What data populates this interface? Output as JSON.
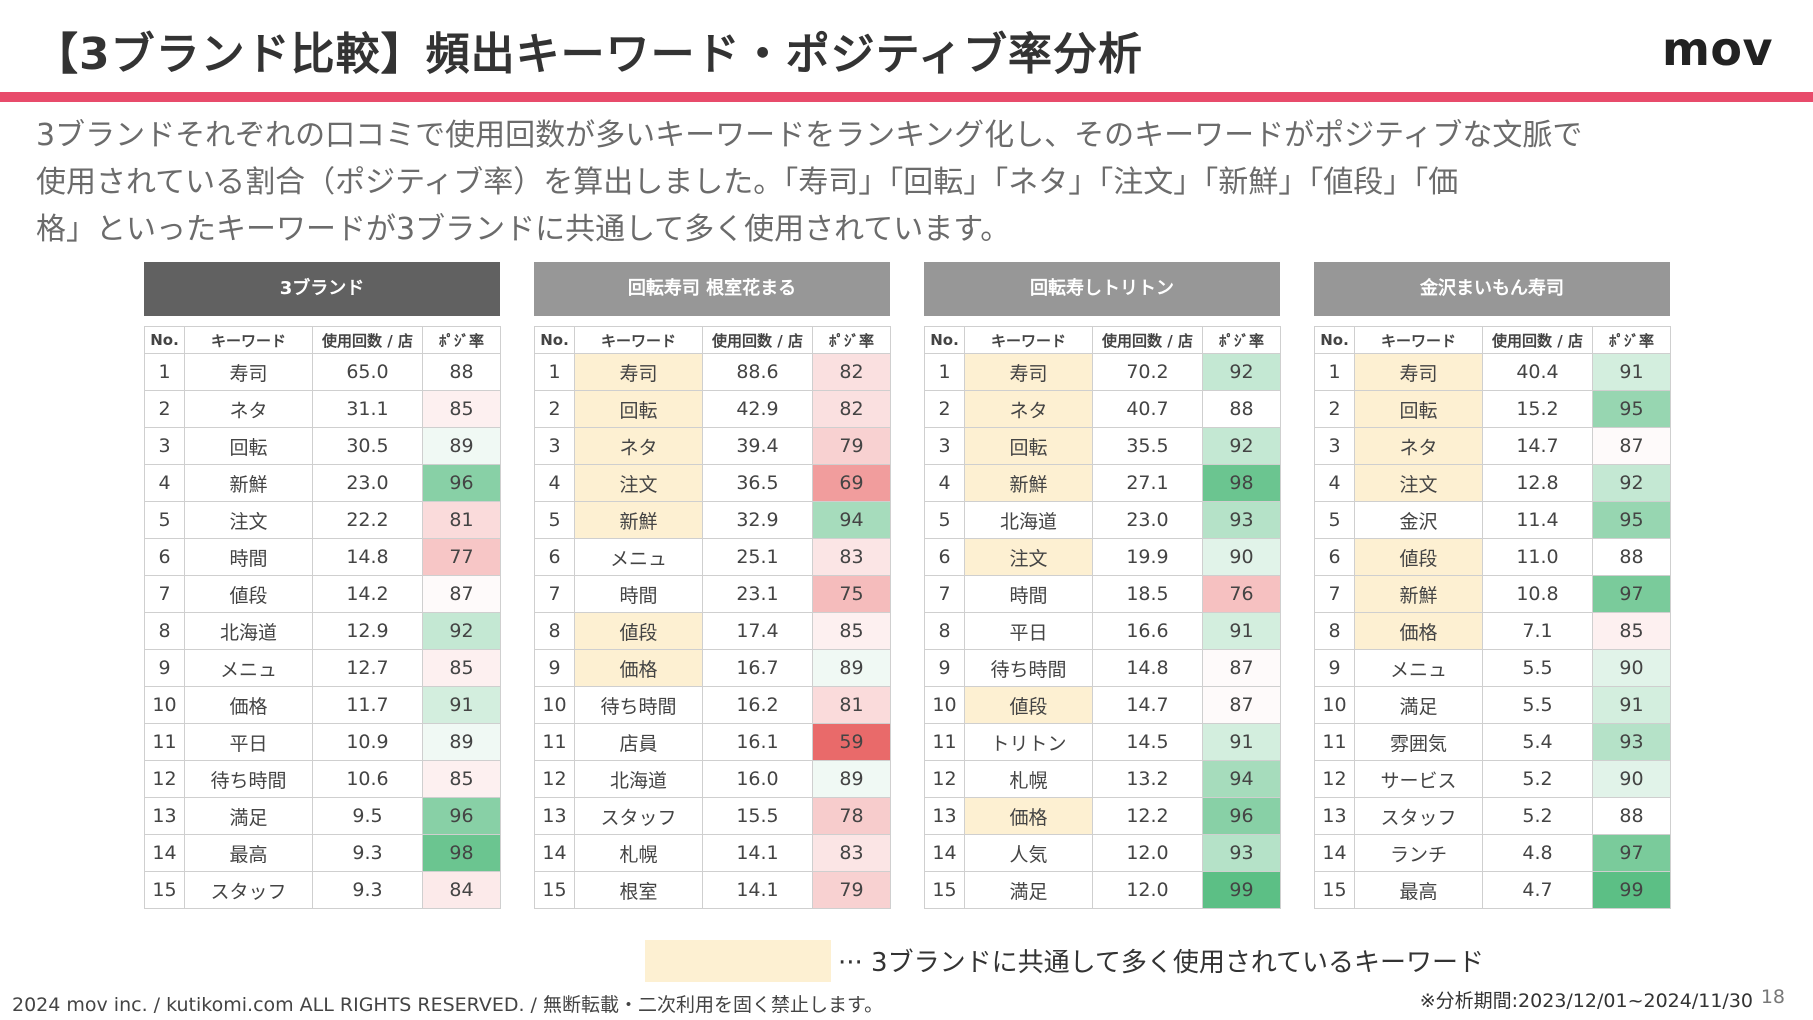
{
  "slide": {
    "title": "【3ブランド比較】頻出キーワード・ポジティブ率分析",
    "logo": "mov",
    "description_lines": [
      "3ブランドそれぞれの口コミで使用回数が多いキーワードをランキング化し、そのキーワードがポジティブな文脈で",
      "使用されている割合（ポジティブ率）を算出しました。「寿司」「回転」「ネタ」「注文」「新鮮」「値段」「価",
      "格」といったキーワードが3ブランドに共通して多く使用されています。"
    ],
    "legend_text": "··· 3ブランドに共通して多く使用されているキーワード",
    "footer": "2024 mov inc. / kutikomi.com ALL RIGHTS RESERVED. / 無断転載・二次利用を固く禁止します。",
    "period": "※分析期間:2023/12/01~2024/11/30",
    "page_number": "18"
  },
  "colors": {
    "accent_bar": "#e84b6b",
    "header_dark": "#616161",
    "header_gray": "#979797",
    "highlight": "#fdf0d2",
    "positive_high": "#5cbf85",
    "negative_high": "#e96a6a"
  },
  "columns": [
    "No.",
    "キーワード",
    "使用回数 / 店",
    "ﾎﾟｼﾞ率"
  ],
  "tables": [
    {
      "title": "3ブランド",
      "header_color": "#616161",
      "rows": [
        {
          "no": "1",
          "keyword": "寿司",
          "count": "65.0",
          "pos": 88,
          "common": false
        },
        {
          "no": "2",
          "keyword": "ネタ",
          "count": "31.1",
          "pos": 85,
          "common": false
        },
        {
          "no": "3",
          "keyword": "回転",
          "count": "30.5",
          "pos": 89,
          "common": false
        },
        {
          "no": "4",
          "keyword": "新鮮",
          "count": "23.0",
          "pos": 96,
          "common": false
        },
        {
          "no": "5",
          "keyword": "注文",
          "count": "22.2",
          "pos": 81,
          "common": false
        },
        {
          "no": "6",
          "keyword": "時間",
          "count": "14.8",
          "pos": 77,
          "common": false
        },
        {
          "no": "7",
          "keyword": "値段",
          "count": "14.2",
          "pos": 87,
          "common": false
        },
        {
          "no": "8",
          "keyword": "北海道",
          "count": "12.9",
          "pos": 92,
          "common": false
        },
        {
          "no": "9",
          "keyword": "メニュ",
          "count": "12.7",
          "pos": 85,
          "common": false
        },
        {
          "no": "10",
          "keyword": "価格",
          "count": "11.7",
          "pos": 91,
          "common": false
        },
        {
          "no": "11",
          "keyword": "平日",
          "count": "10.9",
          "pos": 89,
          "common": false
        },
        {
          "no": "12",
          "keyword": "待ち時間",
          "count": "10.6",
          "pos": 85,
          "common": false
        },
        {
          "no": "13",
          "keyword": "満足",
          "count": "9.5",
          "pos": 96,
          "common": false
        },
        {
          "no": "14",
          "keyword": "最高",
          "count": "9.3",
          "pos": 98,
          "common": false
        },
        {
          "no": "15",
          "keyword": "スタッフ",
          "count": "9.3",
          "pos": 84,
          "common": false
        }
      ]
    },
    {
      "title": "回転寿司 根室花まる",
      "header_color": "#979797",
      "rows": [
        {
          "no": "1",
          "keyword": "寿司",
          "count": "88.6",
          "pos": 82,
          "common": true
        },
        {
          "no": "2",
          "keyword": "回転",
          "count": "42.9",
          "pos": 82,
          "common": true
        },
        {
          "no": "3",
          "keyword": "ネタ",
          "count": "39.4",
          "pos": 79,
          "common": true
        },
        {
          "no": "4",
          "keyword": "注文",
          "count": "36.5",
          "pos": 69,
          "common": true
        },
        {
          "no": "5",
          "keyword": "新鮮",
          "count": "32.9",
          "pos": 94,
          "common": true
        },
        {
          "no": "6",
          "keyword": "メニュ",
          "count": "25.1",
          "pos": 83,
          "common": false
        },
        {
          "no": "7",
          "keyword": "時間",
          "count": "23.1",
          "pos": 75,
          "common": false
        },
        {
          "no": "8",
          "keyword": "値段",
          "count": "17.4",
          "pos": 85,
          "common": true
        },
        {
          "no": "9",
          "keyword": "価格",
          "count": "16.7",
          "pos": 89,
          "common": true
        },
        {
          "no": "10",
          "keyword": "待ち時間",
          "count": "16.2",
          "pos": 81,
          "common": false
        },
        {
          "no": "11",
          "keyword": "店員",
          "count": "16.1",
          "pos": 59,
          "common": false
        },
        {
          "no": "12",
          "keyword": "北海道",
          "count": "16.0",
          "pos": 89,
          "common": false
        },
        {
          "no": "13",
          "keyword": "スタッフ",
          "count": "15.5",
          "pos": 78,
          "common": false
        },
        {
          "no": "14",
          "keyword": "札幌",
          "count": "14.1",
          "pos": 83,
          "common": false
        },
        {
          "no": "15",
          "keyword": "根室",
          "count": "14.1",
          "pos": 79,
          "common": false
        }
      ]
    },
    {
      "title": "回転寿しトリトン",
      "header_color": "#979797",
      "rows": [
        {
          "no": "1",
          "keyword": "寿司",
          "count": "70.2",
          "pos": 92,
          "common": true
        },
        {
          "no": "2",
          "keyword": "ネタ",
          "count": "40.7",
          "pos": 88,
          "common": true
        },
        {
          "no": "3",
          "keyword": "回転",
          "count": "35.5",
          "pos": 92,
          "common": true
        },
        {
          "no": "4",
          "keyword": "新鮮",
          "count": "27.1",
          "pos": 98,
          "common": true
        },
        {
          "no": "5",
          "keyword": "北海道",
          "count": "23.0",
          "pos": 93,
          "common": false
        },
        {
          "no": "6",
          "keyword": "注文",
          "count": "19.9",
          "pos": 90,
          "common": true
        },
        {
          "no": "7",
          "keyword": "時間",
          "count": "18.5",
          "pos": 76,
          "common": false
        },
        {
          "no": "8",
          "keyword": "平日",
          "count": "16.6",
          "pos": 91,
          "common": false
        },
        {
          "no": "9",
          "keyword": "待ち時間",
          "count": "14.8",
          "pos": 87,
          "common": false
        },
        {
          "no": "10",
          "keyword": "値段",
          "count": "14.7",
          "pos": 87,
          "common": true
        },
        {
          "no": "11",
          "keyword": "トリトン",
          "count": "14.5",
          "pos": 91,
          "common": false
        },
        {
          "no": "12",
          "keyword": "札幌",
          "count": "13.2",
          "pos": 94,
          "common": false
        },
        {
          "no": "13",
          "keyword": "価格",
          "count": "12.2",
          "pos": 96,
          "common": true
        },
        {
          "no": "14",
          "keyword": "人気",
          "count": "12.0",
          "pos": 93,
          "common": false
        },
        {
          "no": "15",
          "keyword": "満足",
          "count": "12.0",
          "pos": 99,
          "common": false
        }
      ]
    },
    {
      "title": "金沢まいもん寿司",
      "header_color": "#979797",
      "rows": [
        {
          "no": "1",
          "keyword": "寿司",
          "count": "40.4",
          "pos": 91,
          "common": true
        },
        {
          "no": "2",
          "keyword": "回転",
          "count": "15.2",
          "pos": 95,
          "common": true
        },
        {
          "no": "3",
          "keyword": "ネタ",
          "count": "14.7",
          "pos": 87,
          "common": true
        },
        {
          "no": "4",
          "keyword": "注文",
          "count": "12.8",
          "pos": 92,
          "common": true
        },
        {
          "no": "5",
          "keyword": "金沢",
          "count": "11.4",
          "pos": 95,
          "common": false
        },
        {
          "no": "6",
          "keyword": "値段",
          "count": "11.0",
          "pos": 88,
          "common": true
        },
        {
          "no": "7",
          "keyword": "新鮮",
          "count": "10.8",
          "pos": 97,
          "common": true
        },
        {
          "no": "8",
          "keyword": "価格",
          "count": "7.1",
          "pos": 85,
          "common": true
        },
        {
          "no": "9",
          "keyword": "メニュ",
          "count": "5.5",
          "pos": 90,
          "common": false
        },
        {
          "no": "10",
          "keyword": "満足",
          "count": "5.5",
          "pos": 91,
          "common": false
        },
        {
          "no": "11",
          "keyword": "雰囲気",
          "count": "5.4",
          "pos": 93,
          "common": false
        },
        {
          "no": "12",
          "keyword": "サービス",
          "count": "5.2",
          "pos": 90,
          "common": false
        },
        {
          "no": "13",
          "keyword": "スタッフ",
          "count": "5.2",
          "pos": 88,
          "common": false
        },
        {
          "no": "14",
          "keyword": "ランチ",
          "count": "4.8",
          "pos": 97,
          "common": false
        },
        {
          "no": "15",
          "keyword": "最高",
          "count": "4.7",
          "pos": 99,
          "common": false
        }
      ]
    }
  ]
}
